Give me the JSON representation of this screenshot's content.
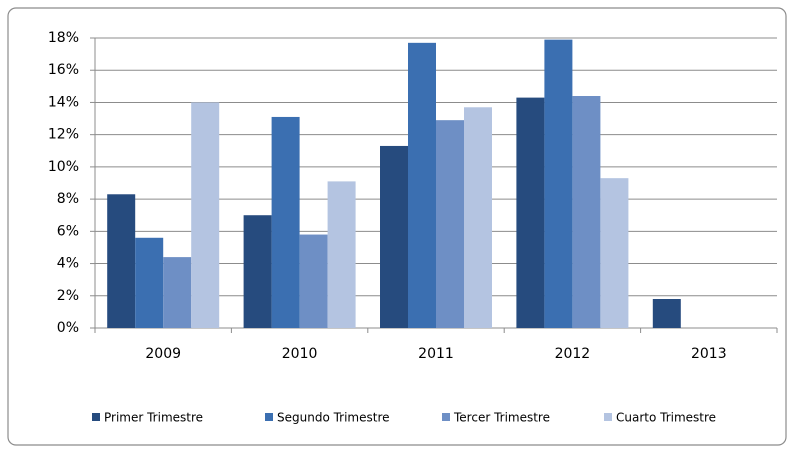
{
  "chart_data": {
    "type": "bar",
    "categories": [
      "2009",
      "2010",
      "2011",
      "2012",
      "2013"
    ],
    "series": [
      {
        "name": "Primer Trimestre",
        "color": "#264b7e",
        "values": [
          8.3,
          7.0,
          11.3,
          14.3,
          1.8
        ]
      },
      {
        "name": "Segundo Trimestre",
        "color": "#3b6fb1",
        "values": [
          5.6,
          13.1,
          17.7,
          17.9,
          null
        ]
      },
      {
        "name": "Tercer Trimestre",
        "color": "#6e8fc5",
        "values": [
          4.4,
          5.8,
          12.9,
          14.4,
          null
        ]
      },
      {
        "name": "Cuarto Trimestre",
        "color": "#b4c4e1",
        "values": [
          14.0,
          9.1,
          13.7,
          9.3,
          null
        ]
      }
    ],
    "ylim": [
      0,
      18
    ],
    "yticks": [
      {
        "value": 0,
        "label": "0%"
      },
      {
        "value": 2,
        "label": "2%"
      },
      {
        "value": 4,
        "label": "4%"
      },
      {
        "value": 6,
        "label": "6%"
      },
      {
        "value": 8,
        "label": "8%"
      },
      {
        "value": 10,
        "label": "10%"
      },
      {
        "value": 12,
        "label": "12%"
      },
      {
        "value": 14,
        "label": "14%"
      },
      {
        "value": 16,
        "label": "16%"
      },
      {
        "value": 18,
        "label": "18%"
      }
    ],
    "grid": true,
    "legend": "bottom"
  }
}
